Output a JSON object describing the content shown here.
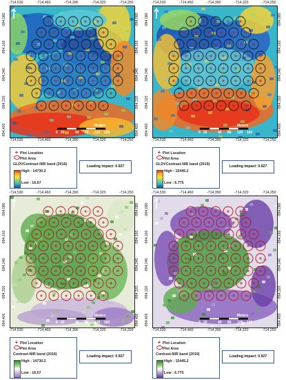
{
  "ticks": {
    "x": [
      "-714,530",
      "-714,460",
      "-714,390",
      "-714,320",
      "-714,250"
    ],
    "y": [
      "-994,080",
      "-994,160",
      "-994,240",
      "-994,320",
      "-994,400"
    ]
  },
  "scale_bar": {
    "values": [
      "0",
      "20",
      "40",
      "80",
      "120",
      "160"
    ],
    "unit": "Meters"
  },
  "legend_common": {
    "plot_location": "Plot Location",
    "plot_area": "Plot Area"
  },
  "colors": {
    "plot_symbol": "#c0151b",
    "legend_border": "#2c5fa8"
  },
  "panels": [
    {
      "id": "gldv-2016",
      "band_title": "GLDVContrast-NIR band (2016)",
      "high": "High : 14730.2",
      "low": "Low : 16.57",
      "loading": "Loading impact: 0.927",
      "ramp": "rainbow",
      "circle_color": "#1a1a1a"
    },
    {
      "id": "gldv-2019",
      "band_title": "GLDVContrast-NIR band (2019)",
      "high": "High : 15445.2",
      "low": "Low : 6.775",
      "loading": "Loading impact: 0.927",
      "ramp": "rainbow",
      "circle_color": "#1a1a1a"
    },
    {
      "id": "contrast-2016",
      "band_title": "Contrast-NIR band (2016)",
      "high": "High : 14730.2",
      "low": "Low : 16.57",
      "loading": "Loading impact: 0.927",
      "ramp": "green-purple",
      "circle_color": "#b5121b"
    },
    {
      "id": "contrast-2019",
      "band_title": "Contrast-NIR band (2019)",
      "high": "High : 15445.2",
      "low": "Low : 6.775",
      "loading": "Loading impact: 0.927",
      "ramp": "green-purple",
      "circle_color": "#b5121b"
    }
  ]
}
